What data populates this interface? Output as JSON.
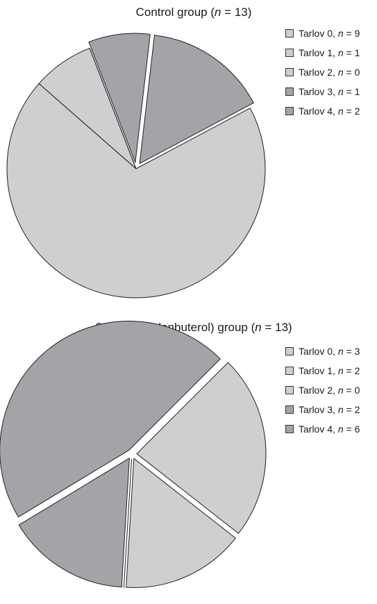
{
  "colors": {
    "light": "#cfcfd1",
    "dark": "#a3a4a8",
    "stroke": "#1f1f1f"
  },
  "chart_data": [
    {
      "type": "pie",
      "title": "Control group (n = 13)",
      "title_parts": {
        "prefix": "Control group (",
        "n_symbol": "n",
        "suffix": " = 13)"
      },
      "slices": [
        {
          "label": "Tarlov 0",
          "n": 9,
          "legend": {
            "name": "Tarlov 0, ",
            "n_symbol": "n",
            "value": " = 9"
          },
          "color": "#cfcfd1",
          "exploded": false
        },
        {
          "label": "Tarlov 1",
          "n": 1,
          "legend": {
            "name": "Tarlov 1, ",
            "n_symbol": "n",
            "value": " = 1"
          },
          "color": "#cfcfd1",
          "exploded": false
        },
        {
          "label": "Tarlov 2",
          "n": 0,
          "legend": {
            "name": "Tarlov 2, ",
            "n_symbol": "n",
            "value": " = 0"
          },
          "color": "#cfcfd1",
          "exploded": false
        },
        {
          "label": "Tarlov 3",
          "n": 1,
          "legend": {
            "name": "Tarlov 3, ",
            "n_symbol": "n",
            "value": " = 1"
          },
          "color": "#a3a4a8",
          "exploded": true
        },
        {
          "label": "Tarlov 4",
          "n": 2,
          "legend": {
            "name": "Tarlov 4, ",
            "n_symbol": "n",
            "value": " = 2"
          },
          "color": "#a3a4a8",
          "exploded": true
        }
      ]
    },
    {
      "type": "pie",
      "title": "β-Agonist (clenbuterol) group (n = 13)",
      "title_parts": {
        "prefix": "β-Agonist (clenbuterol) group (",
        "n_symbol": "n",
        "suffix": " = 13)"
      },
      "slices": [
        {
          "label": "Tarlov 0",
          "n": 3,
          "legend": {
            "name": "Tarlov 0, ",
            "n_symbol": "n",
            "value": " = 3"
          },
          "color": "#cfcfd1",
          "exploded": true
        },
        {
          "label": "Tarlov 1",
          "n": 2,
          "legend": {
            "name": "Tarlov 1, ",
            "n_symbol": "n",
            "value": " = 2"
          },
          "color": "#cfcfd1",
          "exploded": true
        },
        {
          "label": "Tarlov 2",
          "n": 0,
          "legend": {
            "name": "Tarlov 2, ",
            "n_symbol": "n",
            "value": " = 0"
          },
          "color": "#cfcfd1",
          "exploded": true
        },
        {
          "label": "Tarlov 3",
          "n": 2,
          "legend": {
            "name": "Tarlov 3, ",
            "n_symbol": "n",
            "value": " = 2"
          },
          "color": "#a3a4a8",
          "exploded": true
        },
        {
          "label": "Tarlov 4",
          "n": 6,
          "legend": {
            "name": "Tarlov 4, ",
            "n_symbol": "n",
            "value": " = 6"
          },
          "color": "#a3a4a8",
          "exploded": true
        }
      ]
    }
  ]
}
